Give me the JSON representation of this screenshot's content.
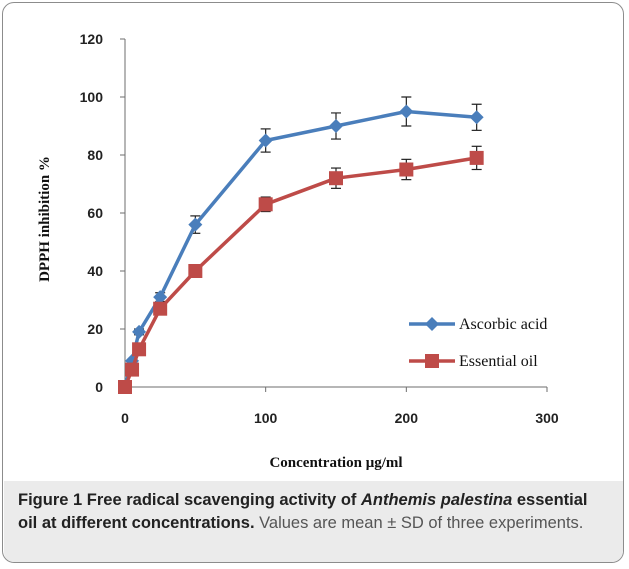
{
  "chart_data": {
    "type": "line",
    "xlabel": "Concentration μg/ml",
    "ylabel": "DPPH inhibition %",
    "xlim": [
      0,
      300
    ],
    "ylim": [
      0,
      120
    ],
    "xticks": [
      0,
      100,
      200,
      300
    ],
    "yticks": [
      0,
      20,
      40,
      60,
      80,
      100,
      120
    ],
    "grid": false,
    "legend_position": "bottom-right",
    "series": [
      {
        "name": "Ascorbic acid",
        "color": "#4a7ebb",
        "marker": "diamond",
        "x": [
          0,
          5,
          10,
          25,
          50,
          100,
          150,
          200,
          250
        ],
        "y": [
          0,
          9,
          19,
          31,
          56,
          85,
          90,
          95,
          93
        ],
        "error": [
          0,
          0,
          1,
          1.5,
          3,
          4,
          4.5,
          5,
          4.5
        ]
      },
      {
        "name": "Essential oil",
        "color": "#be4b48",
        "marker": "square",
        "x": [
          0,
          5,
          10,
          25,
          50,
          100,
          150,
          200,
          250
        ],
        "y": [
          0,
          6,
          13,
          27,
          40,
          63,
          72,
          75,
          79
        ],
        "error": [
          0,
          0,
          1,
          1,
          1.5,
          2.5,
          3.5,
          3.5,
          4
        ]
      }
    ]
  },
  "caption": {
    "figure_label": "Figure 1",
    "title_before_italic": "Free radical scavenging activity of",
    "title_italic": "Anthemis palestina",
    "title_after_italic": "essential oil at different concentrations.",
    "note": "Values are mean ± SD of three experiments."
  }
}
